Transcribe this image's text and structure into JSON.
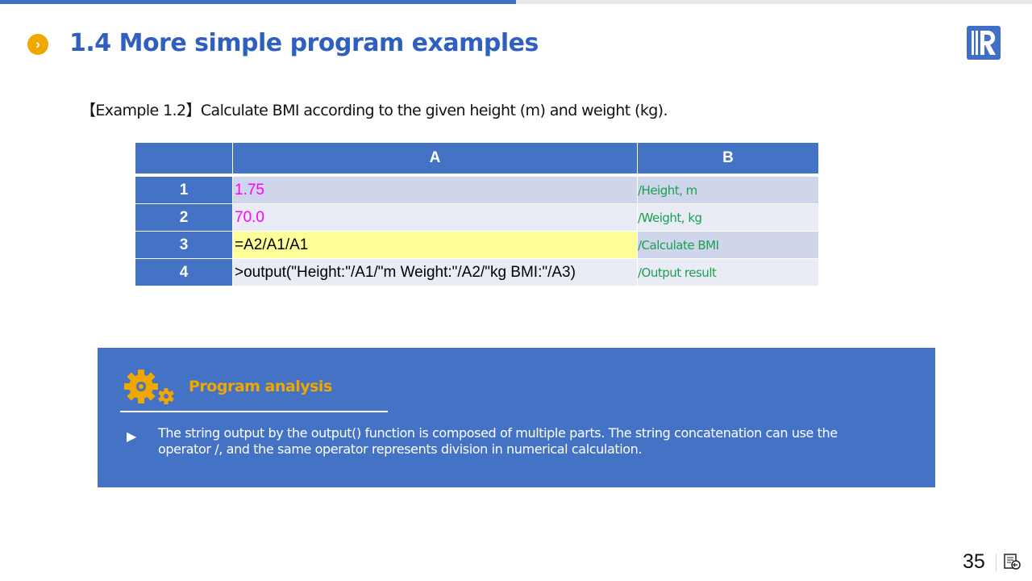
{
  "header": {
    "title": "1.4 More simple program examples",
    "bullet": "›",
    "logo": "R"
  },
  "example": "【Example 1.2】Calculate BMI according to the given height (m) and weight (kg).",
  "grid": {
    "columns": [
      "",
      "A",
      "B"
    ],
    "rows": [
      {
        "num": "1",
        "a": "1.75",
        "b": "/Height, m"
      },
      {
        "num": "2",
        "a": "70.0",
        "b": "/Weight, kg"
      },
      {
        "num": "3",
        "a": "=A2/A1/A1",
        "b": "/Calculate BMI"
      },
      {
        "num": "4",
        "a": ">output(\"Height:\"/A1/\"m  Weight:\"/A2/\"kg  BMI:\"/A3)",
        "b": "/Output result"
      }
    ]
  },
  "analysis": {
    "title": "Program analysis",
    "bullet": "▶",
    "text": "The string output by the output() function is composed of multiple parts. The string concatenation can use the operator /, and the same operator represents division in numerical calculation."
  },
  "footer": {
    "page": "35"
  },
  "colors": {
    "accent": "#4472c4",
    "title": "#2f5fbf",
    "orange": "#f0a800",
    "comment": "#1aa050",
    "constant": "#ff00ff",
    "highlight": "#ffff99"
  }
}
